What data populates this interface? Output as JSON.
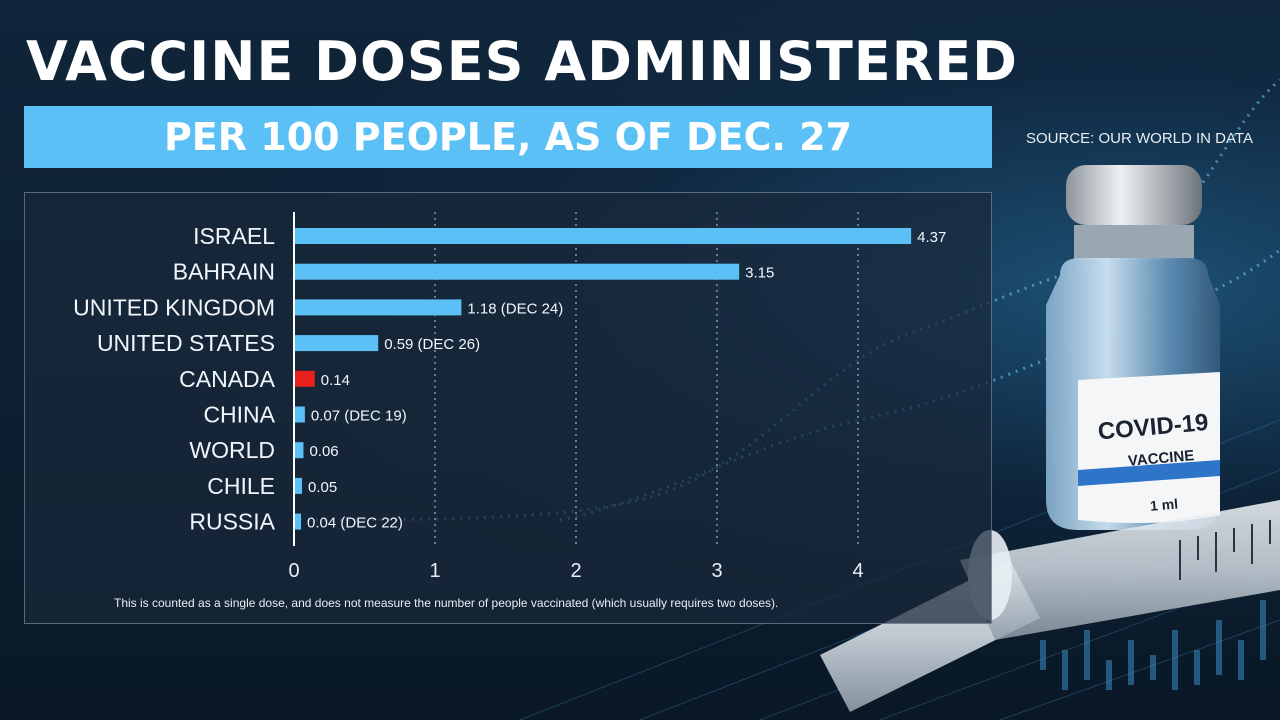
{
  "title": "VACCINE DOSES ADMINISTERED",
  "subtitle": "PER 100 PEOPLE, AS OF DEC. 27",
  "source": "SOURCE: OUR WORLD IN DATA",
  "footnote": "This is counted as a single dose, and does not measure the number of people vaccinated (which usually requires two doses).",
  "vial": {
    "label": "COVID-19",
    "sublabel": "VACCINE",
    "volume": "1 ml"
  },
  "colors": {
    "bar": "#5bc0f6",
    "highlight": "#e8211e",
    "subtitle_band": "#5bc0f6"
  },
  "chart_data": {
    "type": "bar",
    "orientation": "horizontal",
    "categories": [
      "ISRAEL",
      "BAHRAIN",
      "UNITED KINGDOM",
      "UNITED STATES",
      "CANADA",
      "CHINA",
      "WORLD",
      "CHILE",
      "RUSSIA"
    ],
    "values": [
      4.37,
      3.15,
      1.18,
      0.59,
      0.14,
      0.07,
      0.06,
      0.05,
      0.04
    ],
    "value_labels": [
      "4.37",
      "3.15",
      "1.18 (DEC 24)",
      "0.59 (DEC 26)",
      "0.14",
      "0.07 (DEC 19)",
      "0.06",
      "0.05",
      "0.04 (DEC 22)"
    ],
    "highlight": "CANADA",
    "xlim": [
      0,
      4.5
    ],
    "xticks": [
      0,
      1,
      2,
      3,
      4
    ],
    "grid": true
  }
}
